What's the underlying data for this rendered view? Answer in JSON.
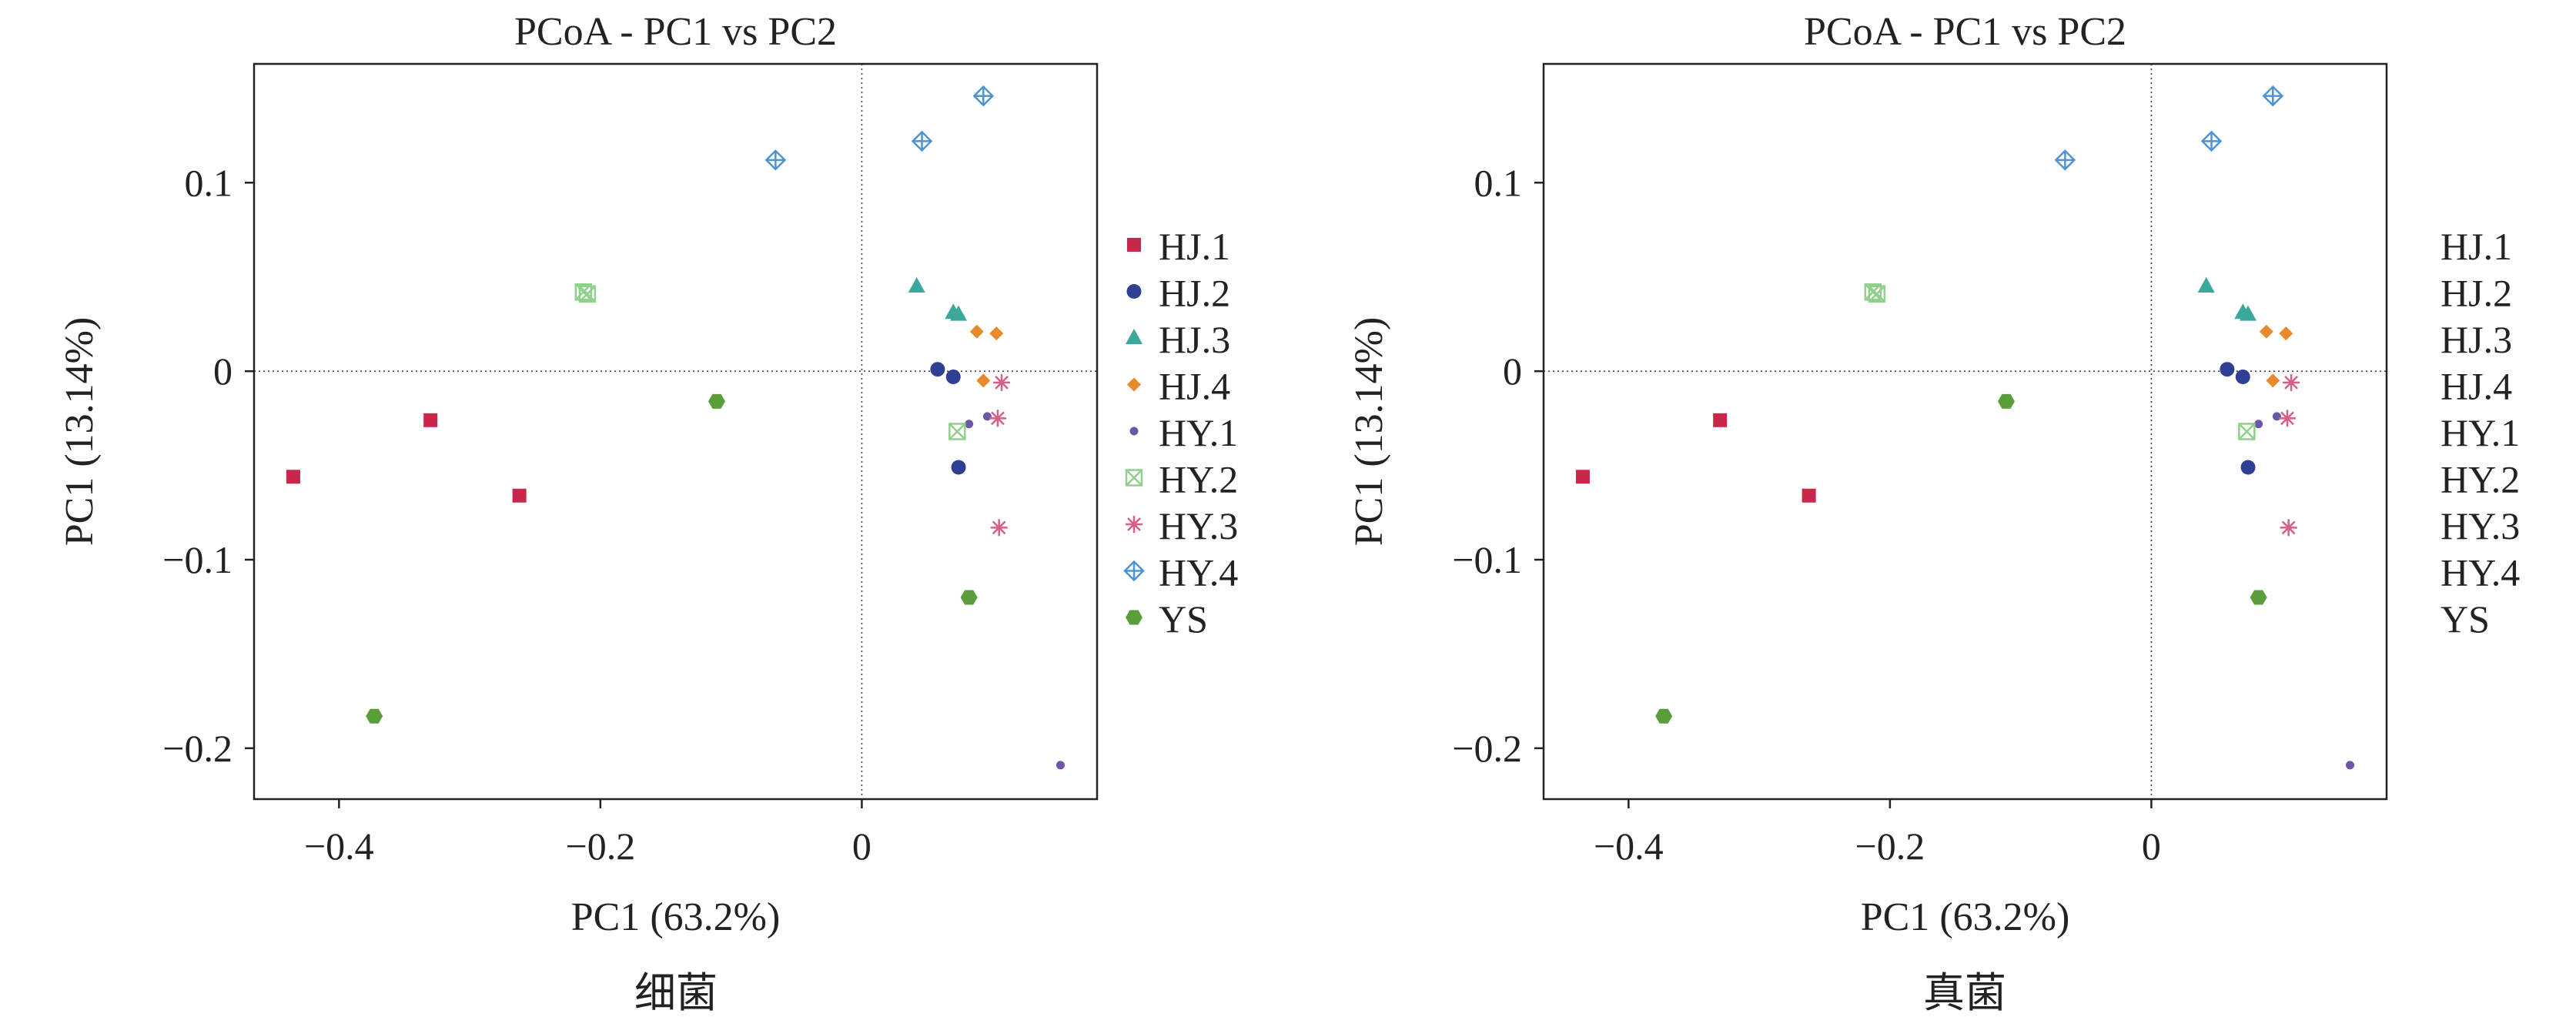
{
  "colors": {
    "HJ.1": "#c8264b",
    "HJ.2": "#2f3f94",
    "HJ.3": "#3aa89b",
    "HJ.4": "#e8892a",
    "HY.1": "#6d56a8",
    "HY.2": "#8fd18a",
    "HY.3": "#d65f86",
    "HY.4": "#4f93d1",
    "YS": "#5a9e3c"
  },
  "chart_data": [
    {
      "type": "scatter",
      "title": "PCoA - PC1 vs PC2",
      "xlabel": "PC1 (63.2%)",
      "ylabel": "PC1 (13.14%)",
      "caption": "细菌",
      "xlim": [
        -0.465,
        0.18
      ],
      "ylim": [
        -0.227,
        0.163
      ],
      "xticks": [
        {
          "v": -0.4,
          "label": "−0.4"
        },
        {
          "v": -0.2,
          "label": "−0.2"
        },
        {
          "v": 0,
          "label": "0"
        }
      ],
      "yticks": [
        {
          "v": 0.1,
          "label": "0.1"
        },
        {
          "v": 0,
          "label": "0"
        },
        {
          "v": -0.1,
          "label": "−0.1"
        },
        {
          "v": -0.2,
          "label": "−0.2"
        }
      ],
      "reference_lines": {
        "x": 0,
        "y": 0
      },
      "legend_position": "right",
      "legend_markers": true,
      "series": [
        {
          "name": "HJ.1",
          "marker": "square",
          "points": [
            [
              -0.435,
              -0.056
            ],
            [
              -0.33,
              -0.026
            ],
            [
              -0.262,
              -0.066
            ]
          ]
        },
        {
          "name": "HJ.2",
          "marker": "circle",
          "points": [
            [
              0.058,
              0.001
            ],
            [
              0.07,
              -0.003
            ],
            [
              0.074,
              -0.051
            ]
          ]
        },
        {
          "name": "HJ.3",
          "marker": "triangle",
          "points": [
            [
              0.042,
              0.045
            ],
            [
              0.07,
              0.031
            ],
            [
              0.074,
              0.03
            ]
          ]
        },
        {
          "name": "HJ.4",
          "marker": "diamond",
          "points": [
            [
              0.088,
              0.021
            ],
            [
              0.103,
              0.02
            ],
            [
              0.093,
              -0.005
            ]
          ]
        },
        {
          "name": "HY.1",
          "marker": "smallcircle",
          "points": [
            [
              0.082,
              -0.028
            ],
            [
              0.096,
              -0.024
            ],
            [
              0.152,
              -0.209
            ]
          ]
        },
        {
          "name": "HY.2",
          "marker": "squarex",
          "points": [
            [
              -0.213,
              0.042
            ],
            [
              -0.21,
              0.041
            ],
            [
              0.073,
              -0.032
            ]
          ]
        },
        {
          "name": "HY.3",
          "marker": "asterisk",
          "points": [
            [
              0.107,
              -0.006
            ],
            [
              0.104,
              -0.025
            ],
            [
              0.105,
              -0.083
            ]
          ]
        },
        {
          "name": "HY.4",
          "marker": "diamondplus",
          "points": [
            [
              -0.066,
              0.112
            ],
            [
              0.046,
              0.122
            ],
            [
              0.093,
              0.146
            ]
          ]
        },
        {
          "name": "YS",
          "marker": "hexagon",
          "points": [
            [
              -0.373,
              -0.183
            ],
            [
              -0.111,
              -0.016
            ],
            [
              0.082,
              -0.12
            ]
          ]
        }
      ]
    },
    {
      "type": "scatter",
      "title": "PCoA - PC1 vs PC2",
      "xlabel": "PC1 (63.2%)",
      "ylabel": "PC1 (13.14%)",
      "caption": "真菌",
      "xlim": [
        -0.465,
        0.18
      ],
      "ylim": [
        -0.227,
        0.163
      ],
      "xticks": [
        {
          "v": -0.4,
          "label": "−0.4"
        },
        {
          "v": -0.2,
          "label": "−0.2"
        },
        {
          "v": 0,
          "label": "0"
        }
      ],
      "yticks": [
        {
          "v": 0.1,
          "label": "0.1"
        },
        {
          "v": 0,
          "label": "0"
        },
        {
          "v": -0.1,
          "label": "−0.1"
        },
        {
          "v": -0.2,
          "label": "−0.2"
        }
      ],
      "reference_lines": {
        "x": 0,
        "y": 0
      },
      "legend_position": "right",
      "legend_markers": false,
      "series": [
        {
          "name": "HJ.1",
          "marker": "square",
          "points": [
            [
              -0.435,
              -0.056
            ],
            [
              -0.33,
              -0.026
            ],
            [
              -0.262,
              -0.066
            ]
          ]
        },
        {
          "name": "HJ.2",
          "marker": "circle",
          "points": [
            [
              0.058,
              0.001
            ],
            [
              0.07,
              -0.003
            ],
            [
              0.074,
              -0.051
            ]
          ]
        },
        {
          "name": "HJ.3",
          "marker": "triangle",
          "points": [
            [
              0.042,
              0.045
            ],
            [
              0.07,
              0.031
            ],
            [
              0.074,
              0.03
            ]
          ]
        },
        {
          "name": "HJ.4",
          "marker": "diamond",
          "points": [
            [
              0.088,
              0.021
            ],
            [
              0.103,
              0.02
            ],
            [
              0.093,
              -0.005
            ]
          ]
        },
        {
          "name": "HY.1",
          "marker": "smallcircle",
          "points": [
            [
              0.082,
              -0.028
            ],
            [
              0.096,
              -0.024
            ],
            [
              0.152,
              -0.209
            ]
          ]
        },
        {
          "name": "HY.2",
          "marker": "squarex",
          "points": [
            [
              -0.213,
              0.042
            ],
            [
              -0.21,
              0.041
            ],
            [
              0.073,
              -0.032
            ]
          ]
        },
        {
          "name": "HY.3",
          "marker": "asterisk",
          "points": [
            [
              0.107,
              -0.006
            ],
            [
              0.104,
              -0.025
            ],
            [
              0.105,
              -0.083
            ]
          ]
        },
        {
          "name": "HY.4",
          "marker": "diamondplus",
          "points": [
            [
              -0.066,
              0.112
            ],
            [
              0.046,
              0.122
            ],
            [
              0.093,
              0.146
            ]
          ]
        },
        {
          "name": "YS",
          "marker": "hexagon",
          "points": [
            [
              -0.373,
              -0.183
            ],
            [
              -0.111,
              -0.016
            ],
            [
              0.082,
              -0.12
            ]
          ]
        }
      ]
    }
  ]
}
